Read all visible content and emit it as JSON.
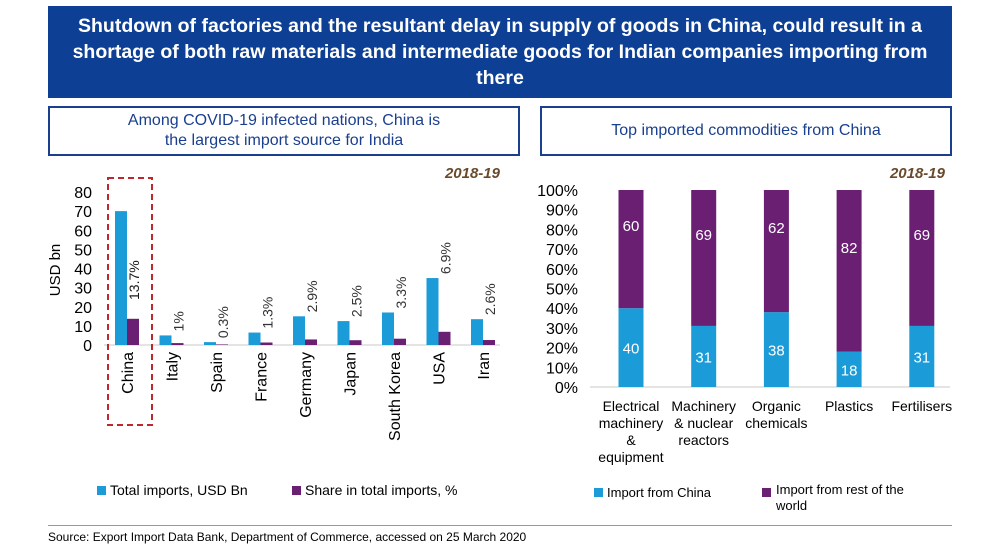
{
  "title": "Shutdown of factories and the resultant delay in supply of goods in China, could result in a shortage of both raw materials and intermediate goods for Indian companies importing from there",
  "left_panel": {
    "heading_line1": "Among COVID-19 infected nations, China is",
    "heading_line2": "the largest import source for India",
    "year": "2018-19"
  },
  "right_panel": {
    "heading": "Top imported commodities from China",
    "year": "2018-19"
  },
  "source": "Source: Export Import Data Bank, Department of Commerce, accessed on 25 March 2020",
  "colors": {
    "blue": "#1b9bd7",
    "purple": "#6a1f73",
    "navy": "#0d3f95",
    "highlight": "#c0272d",
    "year": "#6b4a2b"
  },
  "chart_data": [
    {
      "type": "bar",
      "ylabel": "USD bn",
      "ylim": [
        0,
        80
      ],
      "yticks": [
        0,
        10,
        20,
        30,
        40,
        50,
        60,
        70,
        80
      ],
      "categories": [
        "China",
        "Italy",
        "Spain",
        "France",
        "Germany",
        "Japan",
        "South Korea",
        "USA",
        "Iran"
      ],
      "highlight": "China",
      "legend": "bottom",
      "series": [
        {
          "name": "Total imports, USD Bn",
          "values": [
            70,
            5,
            1.5,
            6.5,
            15,
            12.5,
            17,
            35,
            13.5
          ]
        },
        {
          "name": "Share in total imports, %",
          "values": [
            13.7,
            1,
            0.3,
            1.3,
            2.9,
            2.5,
            3.3,
            6.9,
            2.6
          ],
          "labels": [
            "13.7%",
            "1%",
            "0.3%",
            "1.3%",
            "2.9%",
            "2.5%",
            "3.3%",
            "6.9%",
            "2.6%"
          ]
        }
      ]
    },
    {
      "type": "bar",
      "stacked": true,
      "ylim": [
        0,
        100
      ],
      "yticks": [
        "0%",
        "10%",
        "20%",
        "30%",
        "40%",
        "50%",
        "60%",
        "70%",
        "80%",
        "90%",
        "100%"
      ],
      "categories": [
        [
          "Electrical",
          "machinery",
          "&",
          "equipment"
        ],
        [
          "Machinery",
          "& nuclear",
          "reactors"
        ],
        [
          "Organic",
          "chemicals"
        ],
        [
          "Plastics"
        ],
        [
          "Fertilisers"
        ]
      ],
      "legend": "bottom",
      "series": [
        {
          "name": "Import from China",
          "values": [
            40,
            31,
            38,
            18,
            31
          ]
        },
        {
          "name": "Import from rest of the world",
          "values": [
            60,
            69,
            62,
            82,
            69
          ]
        }
      ]
    }
  ]
}
